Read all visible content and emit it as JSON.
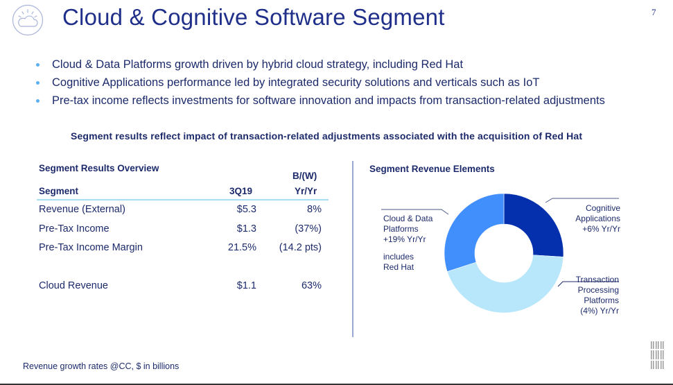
{
  "header": {
    "logo_icon": "cloud-sun-icon",
    "title": "Cloud & Cognitive Software Segment",
    "page_number": "7"
  },
  "bullets": [
    "Cloud & Data Platforms growth driven by hybrid cloud strategy, including Red Hat",
    "Cognitive Applications performance led by integrated security solutions and verticals such as IoT",
    "Pre-tax income reflects investments for software innovation and impacts from transaction-related adjustments"
  ],
  "subheading": "Segment results reflect impact of transaction-related adjustments associated with the acquisition of Red Hat",
  "table": {
    "title": "Segment Results Overview",
    "col_segment": "Segment",
    "col_period": "3Q19",
    "col_change_top": "B/(W)",
    "col_change_bottom": "Yr/Yr",
    "rows": [
      {
        "label": "Revenue (External)",
        "value": "$5.3",
        "change": "8%"
      },
      {
        "label": "Pre-Tax Income",
        "value": "$1.3",
        "change": "(37%)"
      },
      {
        "label": "Pre-Tax Income Margin",
        "value": "21.5%",
        "change": "(14.2 pts)"
      },
      {
        "label": "Cloud Revenue",
        "value": "$1.1",
        "change": "63%"
      }
    ]
  },
  "chart_data": {
    "type": "pie",
    "title": "Segment Revenue Elements",
    "donut": true,
    "slices": [
      {
        "name": "Cognitive Applications",
        "share_pct": 26,
        "label_lines": [
          "Cognitive",
          "Applications",
          "+6% Yr/Yr"
        ],
        "color": "#0530ad"
      },
      {
        "name": "Transaction Processing Platforms",
        "share_pct": 44,
        "label_lines": [
          "Transaction",
          "Processing",
          "Platforms",
          "(4%) Yr/Yr"
        ],
        "color": "#b8e6fb"
      },
      {
        "name": "Cloud & Data Platforms",
        "share_pct": 30,
        "label_lines": [
          "Cloud & Data",
          "Platforms",
          "+19% Yr/Yr"
        ],
        "note_lines": [
          "includes",
          "Red Hat"
        ],
        "color": "#418ffd"
      }
    ]
  },
  "footer": {
    "note": "Revenue growth rates @CC, $ in billions",
    "brand_icon": "ibm-logo-icon"
  }
}
